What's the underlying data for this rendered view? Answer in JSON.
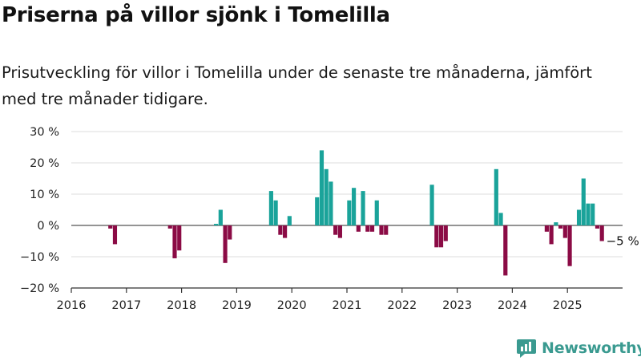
{
  "title": "Priserna på villor sjönk i Tomelilla",
  "subtitle": "Prisutveckling för villor i Tomelilla under de senaste tre månaderna, jämfört med tre månader tidigare.",
  "brand": {
    "name": "Newsworthy",
    "icon": "newsworthy-logo-icon",
    "color": "#3a9a90"
  },
  "colors": {
    "positive": "#1aa39a",
    "negative": "#8b0b45",
    "grid": "#dddddd",
    "axis": "#333333"
  },
  "chart_data": {
    "type": "bar",
    "x_unit": "month",
    "xlim": [
      "2016-01",
      "2025-12"
    ],
    "ylim": [
      -20,
      30
    ],
    "y_ticks": [
      30,
      20,
      10,
      0,
      -10,
      -20
    ],
    "y_tick_labels": [
      "30 %",
      "20 %",
      "10 %",
      "0 %",
      "−10 %",
      "−20 %"
    ],
    "x_ticks": [
      "2016",
      "2017",
      "2018",
      "2019",
      "2020",
      "2021",
      "2022",
      "2023",
      "2024",
      "2025"
    ],
    "grid": true,
    "annotation": {
      "text": "−5 %",
      "x": "2025-07",
      "y": -5
    },
    "values": [
      [
        "2016-09",
        -1
      ],
      [
        "2016-10",
        -6
      ],
      [
        "2017-10",
        -1
      ],
      [
        "2017-11",
        -10.5
      ],
      [
        "2017-12",
        -8
      ],
      [
        "2018-08",
        0.5
      ],
      [
        "2018-09",
        5
      ],
      [
        "2018-10",
        -12
      ],
      [
        "2018-11",
        -4.5
      ],
      [
        "2019-08",
        11
      ],
      [
        "2019-09",
        8
      ],
      [
        "2019-10",
        -3
      ],
      [
        "2019-11",
        -4
      ],
      [
        "2019-12",
        3
      ],
      [
        "2020-06",
        9
      ],
      [
        "2020-07",
        24
      ],
      [
        "2020-08",
        18
      ],
      [
        "2020-09",
        14
      ],
      [
        "2020-10",
        -3
      ],
      [
        "2020-11",
        -4
      ],
      [
        "2021-01",
        8
      ],
      [
        "2021-02",
        12
      ],
      [
        "2021-03",
        -2
      ],
      [
        "2021-04",
        11
      ],
      [
        "2021-05",
        -2
      ],
      [
        "2021-06",
        -2
      ],
      [
        "2021-07",
        8
      ],
      [
        "2021-08",
        -3
      ],
      [
        "2021-09",
        -3
      ],
      [
        "2022-07",
        13
      ],
      [
        "2022-08",
        -7
      ],
      [
        "2022-09",
        -7
      ],
      [
        "2022-10",
        -5
      ],
      [
        "2023-09",
        18
      ],
      [
        "2023-10",
        4
      ],
      [
        "2023-11",
        -16
      ],
      [
        "2024-08",
        -2
      ],
      [
        "2024-09",
        -6
      ],
      [
        "2024-10",
        1
      ],
      [
        "2024-11",
        -1
      ],
      [
        "2024-12",
        -4
      ],
      [
        "2025-01",
        -13
      ],
      [
        "2025-03",
        5
      ],
      [
        "2025-04",
        15
      ],
      [
        "2025-05",
        7
      ],
      [
        "2025-06",
        7
      ],
      [
        "2025-07",
        -1
      ],
      [
        "2025-08",
        -5
      ]
    ]
  }
}
